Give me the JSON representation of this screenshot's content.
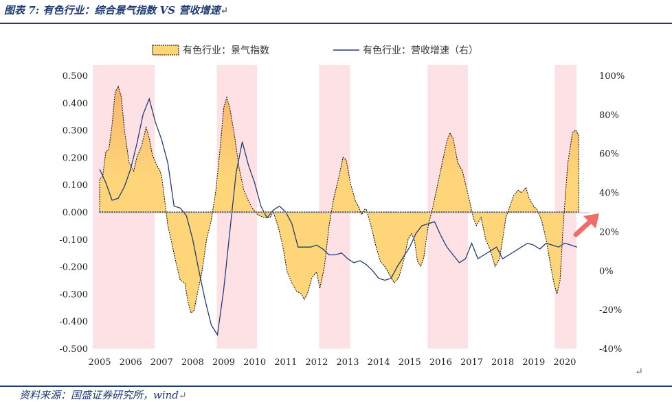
{
  "header": {
    "title": "图表 7: 有色行业：综合景气指数 VS 营收增速",
    "return_mark": "↵"
  },
  "footer": {
    "source": "资料来源：国盛证券研究所，wind",
    "return_mark": "↵",
    "page_mark": "↵"
  },
  "colors": {
    "shade": "#fde1e4",
    "area": "#ffd57a",
    "area_high": "#f7b56b",
    "line": "#1f3b73",
    "arrow": "#f26c6c"
  },
  "chart_data": {
    "type": "area+line",
    "title": "有色行业：综合景气指数 VS 营收增速",
    "legend": [
      {
        "key": "index",
        "label": "有色行业：景气指数"
      },
      {
        "key": "growth",
        "label": "有色行业：营收增速（右）"
      }
    ],
    "x_range": [
      2005.0,
      2020.8
    ],
    "x_ticks": [
      "2005",
      "2006",
      "2007",
      "2008",
      "2009",
      "2010",
      "2011",
      "2012",
      "2013",
      "2014",
      "2015",
      "2016",
      "2017",
      "2018",
      "2019",
      "2020"
    ],
    "y_left": {
      "range": [
        -0.5,
        0.5
      ],
      "ticks": [
        "0.500",
        "0.400",
        "0.300",
        "0.200",
        "0.100",
        "0.000",
        "-0.100",
        "-0.200",
        "-0.300",
        "-0.400",
        "-0.500"
      ]
    },
    "y_right": {
      "range": [
        -40,
        100
      ],
      "unit": "%",
      "ticks": [
        "100%",
        "80%",
        "60%",
        "40%",
        "20%",
        "0%",
        "-20%",
        "-40%"
      ]
    },
    "shaded_periods": [
      [
        2005.0,
        2007.0
      ],
      [
        2009.0,
        2010.3
      ],
      [
        2012.3,
        2013.3
      ],
      [
        2015.8,
        2017.1
      ],
      [
        2019.9,
        2020.6
      ]
    ],
    "series": [
      {
        "name": "有色行业：景气指数",
        "axis": "left",
        "style": "area",
        "points": [
          [
            2005.0,
            0.12
          ],
          [
            2005.1,
            0.13
          ],
          [
            2005.2,
            0.22
          ],
          [
            2005.3,
            0.23
          ],
          [
            2005.4,
            0.32
          ],
          [
            2005.5,
            0.44
          ],
          [
            2005.6,
            0.46
          ],
          [
            2005.7,
            0.42
          ],
          [
            2005.8,
            0.3
          ],
          [
            2005.95,
            0.18
          ],
          [
            2006.1,
            0.15
          ],
          [
            2006.2,
            0.2
          ],
          [
            2006.35,
            0.24
          ],
          [
            2006.5,
            0.31
          ],
          [
            2006.6,
            0.27
          ],
          [
            2006.7,
            0.21
          ],
          [
            2006.85,
            0.17
          ],
          [
            2006.95,
            0.15
          ],
          [
            2007.0,
            0.13
          ],
          [
            2007.1,
            0.04
          ],
          [
            2007.2,
            -0.05
          ],
          [
            2007.3,
            -0.1
          ],
          [
            2007.45,
            -0.18
          ],
          [
            2007.6,
            -0.25
          ],
          [
            2007.75,
            -0.26
          ],
          [
            2007.85,
            -0.33
          ],
          [
            2007.95,
            -0.37
          ],
          [
            2008.05,
            -0.36
          ],
          [
            2008.15,
            -0.3
          ],
          [
            2008.3,
            -0.22
          ],
          [
            2008.45,
            -0.1
          ],
          [
            2008.6,
            -0.03
          ],
          [
            2008.75,
            0.08
          ],
          [
            2008.9,
            0.25
          ],
          [
            2009.0,
            0.38
          ],
          [
            2009.1,
            0.42
          ],
          [
            2009.2,
            0.38
          ],
          [
            2009.35,
            0.28
          ],
          [
            2009.5,
            0.16
          ],
          [
            2009.65,
            0.08
          ],
          [
            2009.8,
            0.04
          ],
          [
            2009.95,
            0.01
          ],
          [
            2010.1,
            -0.01
          ],
          [
            2010.3,
            -0.02
          ],
          [
            2010.5,
            -0.02
          ],
          [
            2010.6,
            0.0
          ],
          [
            2010.75,
            -0.05
          ],
          [
            2010.9,
            -0.12
          ],
          [
            2011.05,
            -0.22
          ],
          [
            2011.2,
            -0.26
          ],
          [
            2011.35,
            -0.29
          ],
          [
            2011.5,
            -0.3
          ],
          [
            2011.6,
            -0.32
          ],
          [
            2011.7,
            -0.3
          ],
          [
            2011.85,
            -0.24
          ],
          [
            2012.0,
            -0.22
          ],
          [
            2012.1,
            -0.28
          ],
          [
            2012.25,
            -0.2
          ],
          [
            2012.4,
            -0.05
          ],
          [
            2012.55,
            0.05
          ],
          [
            2012.7,
            0.12
          ],
          [
            2012.85,
            0.2
          ],
          [
            2012.95,
            0.19
          ],
          [
            2013.1,
            0.1
          ],
          [
            2013.25,
            0.04
          ],
          [
            2013.35,
            0.02
          ],
          [
            2013.45,
            -0.01
          ],
          [
            2013.55,
            0.01
          ],
          [
            2013.6,
            0.01
          ],
          [
            2013.75,
            -0.05
          ],
          [
            2013.9,
            -0.12
          ],
          [
            2014.05,
            -0.18
          ],
          [
            2014.2,
            -0.2
          ],
          [
            2014.35,
            -0.23
          ],
          [
            2014.5,
            -0.26
          ],
          [
            2014.65,
            -0.24
          ],
          [
            2014.8,
            -0.18
          ],
          [
            2014.95,
            -0.1
          ],
          [
            2015.05,
            -0.08
          ],
          [
            2015.15,
            -0.1
          ],
          [
            2015.25,
            -0.18
          ],
          [
            2015.35,
            -0.2
          ],
          [
            2015.45,
            -0.17
          ],
          [
            2015.6,
            -0.05
          ],
          [
            2015.75,
            0.02
          ],
          [
            2015.9,
            0.1
          ],
          [
            2016.05,
            0.18
          ],
          [
            2016.2,
            0.26
          ],
          [
            2016.3,
            0.29
          ],
          [
            2016.4,
            0.27
          ],
          [
            2016.55,
            0.18
          ],
          [
            2016.7,
            0.15
          ],
          [
            2016.85,
            0.08
          ],
          [
            2016.95,
            0.03
          ],
          [
            2017.05,
            -0.02
          ],
          [
            2017.15,
            -0.05
          ],
          [
            2017.3,
            -0.02
          ],
          [
            2017.45,
            -0.1
          ],
          [
            2017.6,
            -0.14
          ],
          [
            2017.75,
            -0.2
          ],
          [
            2017.9,
            -0.17
          ],
          [
            2018.0,
            -0.1
          ],
          [
            2018.1,
            -0.02
          ],
          [
            2018.2,
            0.01
          ],
          [
            2018.35,
            0.06
          ],
          [
            2018.5,
            0.08
          ],
          [
            2018.6,
            0.07
          ],
          [
            2018.75,
            0.09
          ],
          [
            2018.85,
            0.05
          ],
          [
            2019.0,
            0.02
          ],
          [
            2019.1,
            0.01
          ],
          [
            2019.25,
            -0.03
          ],
          [
            2019.4,
            -0.1
          ],
          [
            2019.55,
            -0.2
          ],
          [
            2019.65,
            -0.26
          ],
          [
            2019.75,
            -0.3
          ],
          [
            2019.85,
            -0.25
          ],
          [
            2019.95,
            -0.05
          ],
          [
            2020.1,
            0.18
          ],
          [
            2020.25,
            0.29
          ],
          [
            2020.35,
            0.3
          ],
          [
            2020.45,
            0.28
          ]
        ]
      },
      {
        "name": "有色行业：营收增速（右）",
        "axis": "right",
        "style": "line",
        "points": [
          [
            2005.0,
            52
          ],
          [
            2005.2,
            45
          ],
          [
            2005.4,
            36
          ],
          [
            2005.6,
            37
          ],
          [
            2005.8,
            43
          ],
          [
            2006.0,
            52
          ],
          [
            2006.2,
            65
          ],
          [
            2006.4,
            80
          ],
          [
            2006.6,
            88
          ],
          [
            2006.8,
            76
          ],
          [
            2007.0,
            67
          ],
          [
            2007.2,
            55
          ],
          [
            2007.4,
            33
          ],
          [
            2007.6,
            32
          ],
          [
            2007.8,
            28
          ],
          [
            2008.0,
            16
          ],
          [
            2008.2,
            0
          ],
          [
            2008.4,
            -15
          ],
          [
            2008.6,
            -28
          ],
          [
            2008.8,
            -33
          ],
          [
            2009.0,
            -10
          ],
          [
            2009.2,
            20
          ],
          [
            2009.4,
            50
          ],
          [
            2009.6,
            66
          ],
          [
            2009.8,
            54
          ],
          [
            2010.0,
            45
          ],
          [
            2010.2,
            33
          ],
          [
            2010.4,
            27
          ],
          [
            2010.6,
            31
          ],
          [
            2010.8,
            33
          ],
          [
            2011.0,
            30
          ],
          [
            2011.2,
            24
          ],
          [
            2011.4,
            12
          ],
          [
            2011.6,
            12
          ],
          [
            2011.8,
            12
          ],
          [
            2012.0,
            13
          ],
          [
            2012.2,
            11
          ],
          [
            2012.4,
            8
          ],
          [
            2012.6,
            8
          ],
          [
            2012.8,
            9
          ],
          [
            2013.0,
            6
          ],
          [
            2013.2,
            4
          ],
          [
            2013.4,
            5
          ],
          [
            2013.6,
            3
          ],
          [
            2013.8,
            0
          ],
          [
            2014.0,
            -4
          ],
          [
            2014.2,
            -5
          ],
          [
            2014.4,
            -4
          ],
          [
            2014.6,
            2
          ],
          [
            2014.8,
            7
          ],
          [
            2015.0,
            12
          ],
          [
            2015.2,
            19
          ],
          [
            2015.4,
            23
          ],
          [
            2015.6,
            24
          ],
          [
            2015.8,
            25
          ],
          [
            2016.0,
            18
          ],
          [
            2016.2,
            12
          ],
          [
            2016.4,
            8
          ],
          [
            2016.6,
            4
          ],
          [
            2016.8,
            6
          ],
          [
            2017.0,
            14
          ],
          [
            2017.2,
            6
          ],
          [
            2017.4,
            8
          ],
          [
            2017.6,
            10
          ],
          [
            2017.8,
            12
          ],
          [
            2018.0,
            6
          ],
          [
            2018.2,
            8
          ],
          [
            2018.4,
            10
          ],
          [
            2018.6,
            12
          ],
          [
            2018.8,
            14
          ],
          [
            2019.0,
            13
          ],
          [
            2019.2,
            11
          ],
          [
            2019.4,
            14
          ],
          [
            2019.6,
            13
          ],
          [
            2019.8,
            12
          ],
          [
            2020.0,
            14
          ],
          [
            2020.2,
            13
          ],
          [
            2020.4,
            12
          ]
        ]
      }
    ],
    "annotation": {
      "type": "arrow",
      "direction": "up-right"
    }
  }
}
